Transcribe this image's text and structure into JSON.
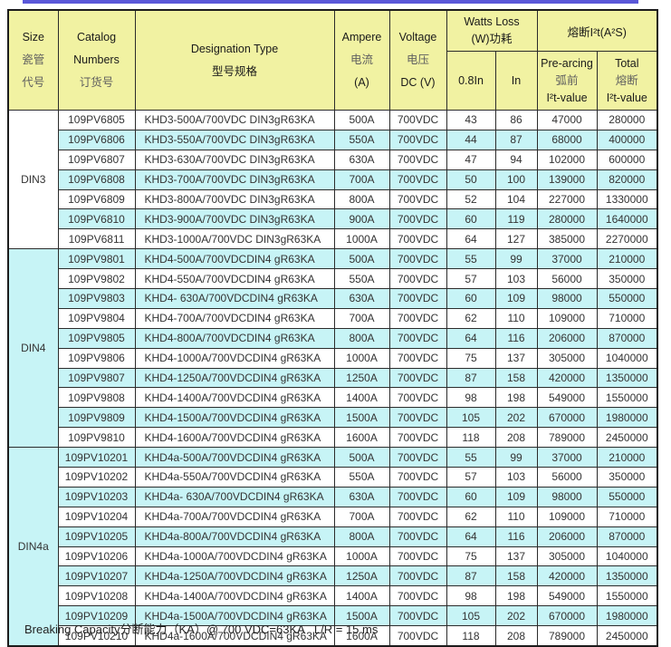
{
  "page": {
    "accent_color": "#5a57d8",
    "header_bg_color": "#f1f2a2",
    "stripe_color": "#c7f4f6",
    "footnote": "Breaking Capacity分断能力（KA）@ 700 VDC=63KA   L/R = 15 ms"
  },
  "table": {
    "header": {
      "size_en": "Size",
      "size_zh1": "瓷管",
      "size_zh2": "代号",
      "catalog_en1": "Catalog",
      "catalog_en2": "Numbers",
      "catalog_zh": "订货号",
      "designation_en": "Designation Type",
      "designation_zh": "型号规格",
      "ampere_en": "Ampere",
      "ampere_zh": "电流",
      "ampere_unit": "(A)",
      "voltage_en": "Voltage",
      "voltage_zh": "电压",
      "voltage_unit": "DC (V)",
      "watts_line1": "Watts Loss",
      "watts_line2": "(W)功耗",
      "i2t_group": "熔断I²t(A²S)",
      "col_08in": "0.8In",
      "col_in": "In",
      "prearcing_en": "Pre-arcing",
      "prearcing_zh": "弧前",
      "prearcing_sub": "I²t-value",
      "total_en": "Total",
      "total_zh": "熔断",
      "total_sub": "I²t-value"
    },
    "sections": [
      {
        "size": "DIN3",
        "rows": [
          [
            "109PV6805",
            "KHD3-500A/700VDC DIN3gR63KA",
            "500A",
            "700VDC",
            "43",
            "86",
            "47000",
            "280000"
          ],
          [
            "109PV6806",
            "KHD3-550A/700VDC DIN3gR63KA",
            "550A",
            "700VDC",
            "44",
            "87",
            "68000",
            "400000"
          ],
          [
            "109PV6807",
            "KHD3-630A/700VDC DIN3gR63KA",
            "630A",
            "700VDC",
            "47",
            "94",
            "102000",
            "600000"
          ],
          [
            "109PV6808",
            "KHD3-700A/700VDC DIN3gR63KA",
            "700A",
            "700VDC",
            "50",
            "100",
            "139000",
            "820000"
          ],
          [
            "109PV6809",
            "KHD3-800A/700VDC DIN3gR63KA",
            "800A",
            "700VDC",
            "52",
            "104",
            "227000",
            "1330000"
          ],
          [
            "109PV6810",
            "KHD3-900A/700VDC DIN3gR63KA",
            "900A",
            "700VDC",
            "60",
            "119",
            "280000",
            "1640000"
          ],
          [
            "109PV6811",
            "KHD3-1000A/700VDC DIN3gR63KA",
            "1000A",
            "700VDC",
            "64",
            "127",
            "385000",
            "2270000"
          ]
        ]
      },
      {
        "size": "DIN4",
        "rows": [
          [
            "109PV9801",
            "KHD4-500A/700VDCDIN4 gR63KA",
            "500A",
            "700VDC",
            "55",
            "99",
            "37000",
            "210000"
          ],
          [
            "109PV9802",
            "KHD4-550A/700VDCDIN4 gR63KA",
            "550A",
            "700VDC",
            "57",
            "103",
            "56000",
            "350000"
          ],
          [
            "109PV9803",
            "KHD4- 630A/700VDCDIN4 gR63KA",
            "630A",
            "700VDC",
            "60",
            "109",
            "98000",
            "550000"
          ],
          [
            "109PV9804",
            "KHD4-700A/700VDCDIN4 gR63KA",
            "700A",
            "700VDC",
            "62",
            "110",
            "109000",
            "710000"
          ],
          [
            "109PV9805",
            "KHD4-800A/700VDCDIN4 gR63KA",
            "800A",
            "700VDC",
            "64",
            "116",
            "206000",
            "870000"
          ],
          [
            "109PV9806",
            "KHD4-1000A/700VDCDIN4 gR63KA",
            "1000A",
            "700VDC",
            "75",
            "137",
            "305000",
            "1040000"
          ],
          [
            "109PV9807",
            "KHD4-1250A/700VDCDIN4 gR63KA",
            "1250A",
            "700VDC",
            "87",
            "158",
            "420000",
            "1350000"
          ],
          [
            "109PV9808",
            "KHD4-1400A/700VDCDIN4 gR63KA",
            "1400A",
            "700VDC",
            "98",
            "198",
            "549000",
            "1550000"
          ],
          [
            "109PV9809",
            "KHD4-1500A/700VDCDIN4 gR63KA",
            "1500A",
            "700VDC",
            "105",
            "202",
            "670000",
            "1980000"
          ],
          [
            "109PV9810",
            "KHD4-1600A/700VDCDIN4 gR63KA",
            "1600A",
            "700VDC",
            "118",
            "208",
            "789000",
            "2450000"
          ]
        ]
      },
      {
        "size": "DIN4a",
        "rows": [
          [
            "109PV10201",
            "KHD4a-500A/700VDCDIN4 gR63KA",
            "500A",
            "700VDC",
            "55",
            "99",
            "37000",
            "210000"
          ],
          [
            "109PV10202",
            "KHD4a-550A/700VDCDIN4 gR63KA",
            "550A",
            "700VDC",
            "57",
            "103",
            "56000",
            "350000"
          ],
          [
            "109PV10203",
            "KHD4a- 630A/700VDCDIN4 gR63KA",
            "630A",
            "700VDC",
            "60",
            "109",
            "98000",
            "550000"
          ],
          [
            "109PV10204",
            "KHD4a-700A/700VDCDIN4 gR63KA",
            "700A",
            "700VDC",
            "62",
            "110",
            "109000",
            "710000"
          ],
          [
            "109PV10205",
            "KHD4a-800A/700VDCDIN4 gR63KA",
            "800A",
            "700VDC",
            "64",
            "116",
            "206000",
            "870000"
          ],
          [
            "109PV10206",
            "KHD4a-1000A/700VDCDIN4 gR63KA",
            "1000A",
            "700VDC",
            "75",
            "137",
            "305000",
            "1040000"
          ],
          [
            "109PV10207",
            "KHD4a-1250A/700VDCDIN4 gR63KA",
            "1250A",
            "700VDC",
            "87",
            "158",
            "420000",
            "1350000"
          ],
          [
            "109PV10208",
            "KHD4a-1400A/700VDCDIN4 gR63KA",
            "1400A",
            "700VDC",
            "98",
            "198",
            "549000",
            "1550000"
          ],
          [
            "109PV10209",
            "KHD4a-1500A/700VDCDIN4 gR63KA",
            "1500A",
            "700VDC",
            "105",
            "202",
            "670000",
            "1980000"
          ],
          [
            "109PV10210",
            "KHD4a-1600A/700VDCDIN4 gR63KA",
            "1600A",
            "700VDC",
            "118",
            "208",
            "789000",
            "2450000"
          ]
        ]
      }
    ]
  }
}
